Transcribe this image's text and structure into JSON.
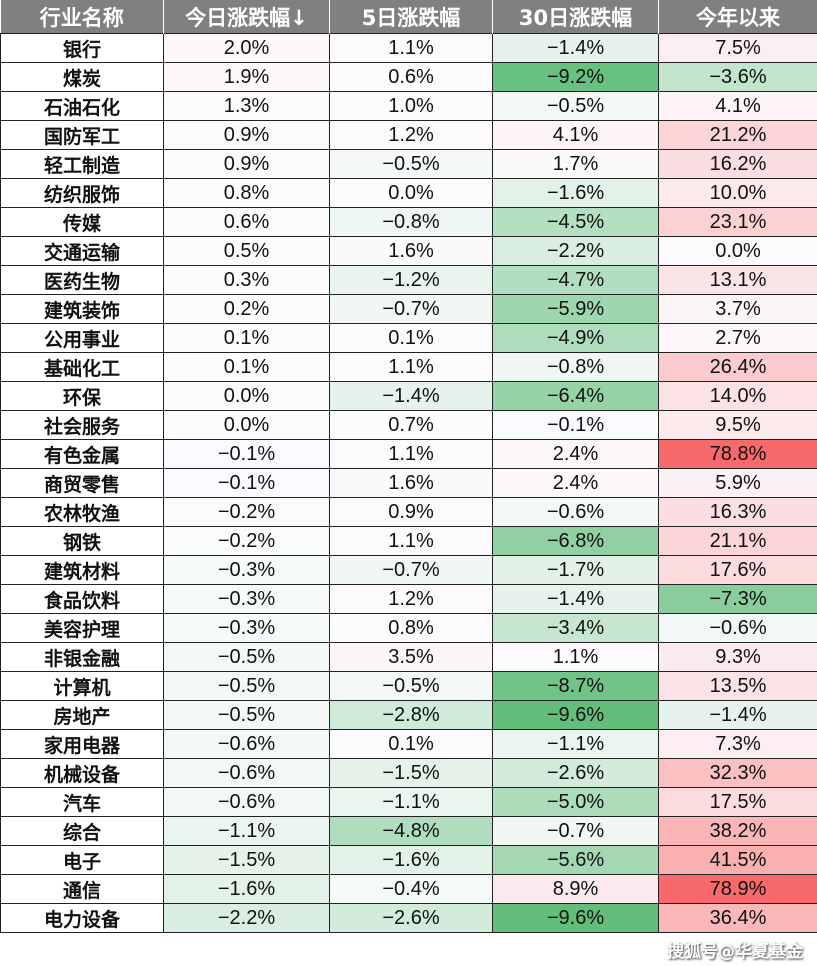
{
  "chart_data": {
    "type": "table",
    "columns": [
      "行业名称",
      "今日涨跌幅↓",
      "5日涨跌幅",
      "30日涨跌幅",
      "今年以来"
    ],
    "color_scale": {
      "min_color": "#63be7b",
      "mid_color": "#fcfcff",
      "max_color": "#f8696b",
      "mid_value": 0
    },
    "rows": [
      [
        "银行",
        "2.0%",
        "1.1%",
        "-1.4%",
        "7.5%"
      ],
      [
        "煤炭",
        "1.9%",
        "0.6%",
        "-9.2%",
        "-3.6%"
      ],
      [
        "石油石化",
        "1.3%",
        "1.0%",
        "-0.5%",
        "4.1%"
      ],
      [
        "国防军工",
        "0.9%",
        "1.2%",
        "4.1%",
        "21.2%"
      ],
      [
        "轻工制造",
        "0.9%",
        "-0.5%",
        "1.7%",
        "16.2%"
      ],
      [
        "纺织服饰",
        "0.8%",
        "0.0%",
        "-1.6%",
        "10.0%"
      ],
      [
        "传媒",
        "0.6%",
        "-0.8%",
        "-4.5%",
        "23.1%"
      ],
      [
        "交通运输",
        "0.5%",
        "1.6%",
        "-2.2%",
        "0.0%"
      ],
      [
        "医药生物",
        "0.3%",
        "-1.2%",
        "-4.7%",
        "13.1%"
      ],
      [
        "建筑装饰",
        "0.2%",
        "-0.7%",
        "-5.9%",
        "3.7%"
      ],
      [
        "公用事业",
        "0.1%",
        "0.1%",
        "-4.9%",
        "2.7%"
      ],
      [
        "基础化工",
        "0.1%",
        "1.1%",
        "-0.8%",
        "26.4%"
      ],
      [
        "环保",
        "0.0%",
        "-1.4%",
        "-6.4%",
        "14.0%"
      ],
      [
        "社会服务",
        "0.0%",
        "0.7%",
        "-0.1%",
        "9.5%"
      ],
      [
        "有色金属",
        "-0.1%",
        "1.1%",
        "2.4%",
        "78.8%"
      ],
      [
        "商贸零售",
        "-0.1%",
        "1.6%",
        "2.4%",
        "5.9%"
      ],
      [
        "农林牧渔",
        "-0.2%",
        "0.9%",
        "-0.6%",
        "16.3%"
      ],
      [
        "钢铁",
        "-0.2%",
        "1.1%",
        "-6.8%",
        "21.1%"
      ],
      [
        "建筑材料",
        "-0.3%",
        "-0.7%",
        "-1.7%",
        "17.6%"
      ],
      [
        "食品饮料",
        "-0.3%",
        "1.2%",
        "-1.4%",
        "-7.3%"
      ],
      [
        "美容护理",
        "-0.3%",
        "0.8%",
        "-3.4%",
        "-0.6%"
      ],
      [
        "非银金融",
        "-0.5%",
        "3.5%",
        "1.1%",
        "9.3%"
      ],
      [
        "计算机",
        "-0.5%",
        "-0.5%",
        "-8.7%",
        "13.5%"
      ],
      [
        "房地产",
        "-0.5%",
        "-2.8%",
        "-9.6%",
        "-1.4%"
      ],
      [
        "家用电器",
        "-0.6%",
        "0.1%",
        "-1.1%",
        "7.3%"
      ],
      [
        "机械设备",
        "-0.6%",
        "-1.5%",
        "-2.6%",
        "32.3%"
      ],
      [
        "汽车",
        "-0.6%",
        "-1.1%",
        "-5.0%",
        "17.5%"
      ],
      [
        "综合",
        "-1.1%",
        "-4.8%",
        "-0.7%",
        "38.2%"
      ],
      [
        "电子",
        "-1.5%",
        "-1.6%",
        "-5.6%",
        "41.5%"
      ],
      [
        "通信",
        "-1.6%",
        "-0.4%",
        "8.9%",
        "78.9%"
      ],
      [
        "电力设备",
        "-2.2%",
        "-2.6%",
        "-9.6%",
        "36.4%"
      ]
    ]
  },
  "watermark": "搜狐号@华夏基金"
}
